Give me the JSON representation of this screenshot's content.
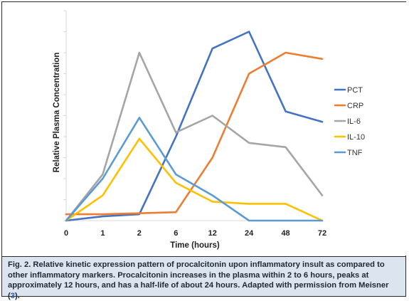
{
  "chart_data": {
    "type": "line",
    "xlabel": "Time (hours)",
    "ylabel": "Relative Plasma Concentration",
    "categories": [
      "0",
      "1",
      "2",
      "6",
      "12",
      "24",
      "48",
      "72"
    ],
    "ylim": [
      0,
      100
    ],
    "grid": false,
    "legend_position": "right",
    "series": [
      {
        "name": "PCT",
        "color": "#4472c4",
        "values": [
          0,
          2,
          3,
          40,
          82,
          90,
          52,
          47
        ]
      },
      {
        "name": "CRP",
        "color": "#ed7d31",
        "values": [
          3,
          3,
          3.5,
          4,
          30,
          70,
          80,
          77
        ]
      },
      {
        "name": "IL-6",
        "color": "#a5a5a5",
        "values": [
          0,
          22,
          80,
          42,
          50,
          37,
          35,
          12
        ]
      },
      {
        "name": "IL-10",
        "color": "#ffc000",
        "values": [
          0,
          12,
          39,
          18,
          9,
          8,
          8,
          0
        ]
      },
      {
        "name": "TNF",
        "color": "#5b9bd5",
        "values": [
          0,
          20,
          49,
          22,
          12,
          0,
          0,
          0
        ]
      }
    ]
  },
  "caption": {
    "label": "Fig. 2.",
    "text": " Relative kinetic expression pattern of procalcitonin upon inflammatory insult as compared to other inflammatory markers. Procalcitonin increases in the plasma within 2 to 6 hours, peaks at approximately 12 hours, and has a half-life of about 24 hours. Adapted with permission from Meisner (",
    "ref": "3",
    "tail": ")."
  }
}
